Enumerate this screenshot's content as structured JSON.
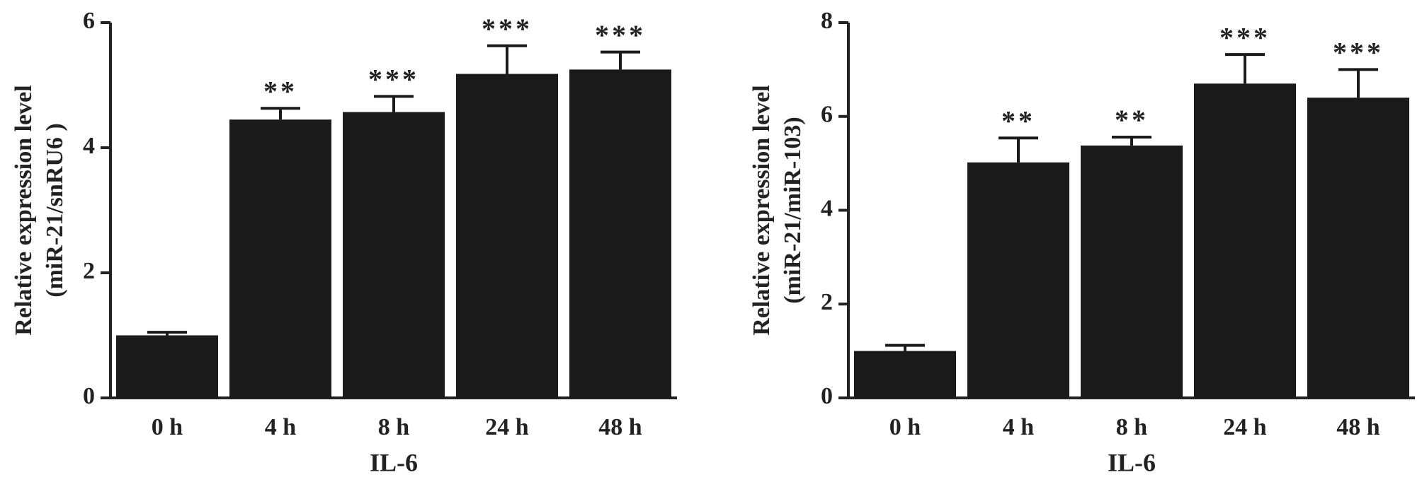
{
  "chart_data": [
    {
      "type": "bar",
      "ylabel": [
        "Relative expression level",
        "(miR-21/snRU6 )"
      ],
      "xlabel": "IL-6",
      "categories": [
        "0 h",
        "4 h",
        "8 h",
        "24 h",
        "48 h"
      ],
      "values": [
        1.0,
        4.45,
        4.57,
        5.18,
        5.25
      ],
      "errors": [
        0.05,
        0.18,
        0.25,
        0.45,
        0.28
      ],
      "annotations": [
        null,
        "**",
        "***",
        "***",
        "***"
      ],
      "color": "#1a1a1a",
      "ylim": [
        0,
        6
      ],
      "yticks": [
        0,
        2,
        4,
        6
      ]
    },
    {
      "type": "bar",
      "ylabel": [
        "Relative expression level",
        "(miR-21/miR-103)"
      ],
      "xlabel": "IL-6",
      "categories": [
        "0 h",
        "4 h",
        "8 h",
        "24 h",
        "48 h"
      ],
      "values": [
        1.0,
        5.02,
        5.38,
        6.7,
        6.4
      ],
      "errors": [
        0.12,
        0.52,
        0.18,
        0.62,
        0.6
      ],
      "annotations": [
        null,
        "**",
        "**",
        "***",
        "***"
      ],
      "color": "#1a1a1a",
      "ylim": [
        0,
        8
      ],
      "yticks": [
        0,
        2,
        4,
        6,
        8
      ]
    }
  ]
}
